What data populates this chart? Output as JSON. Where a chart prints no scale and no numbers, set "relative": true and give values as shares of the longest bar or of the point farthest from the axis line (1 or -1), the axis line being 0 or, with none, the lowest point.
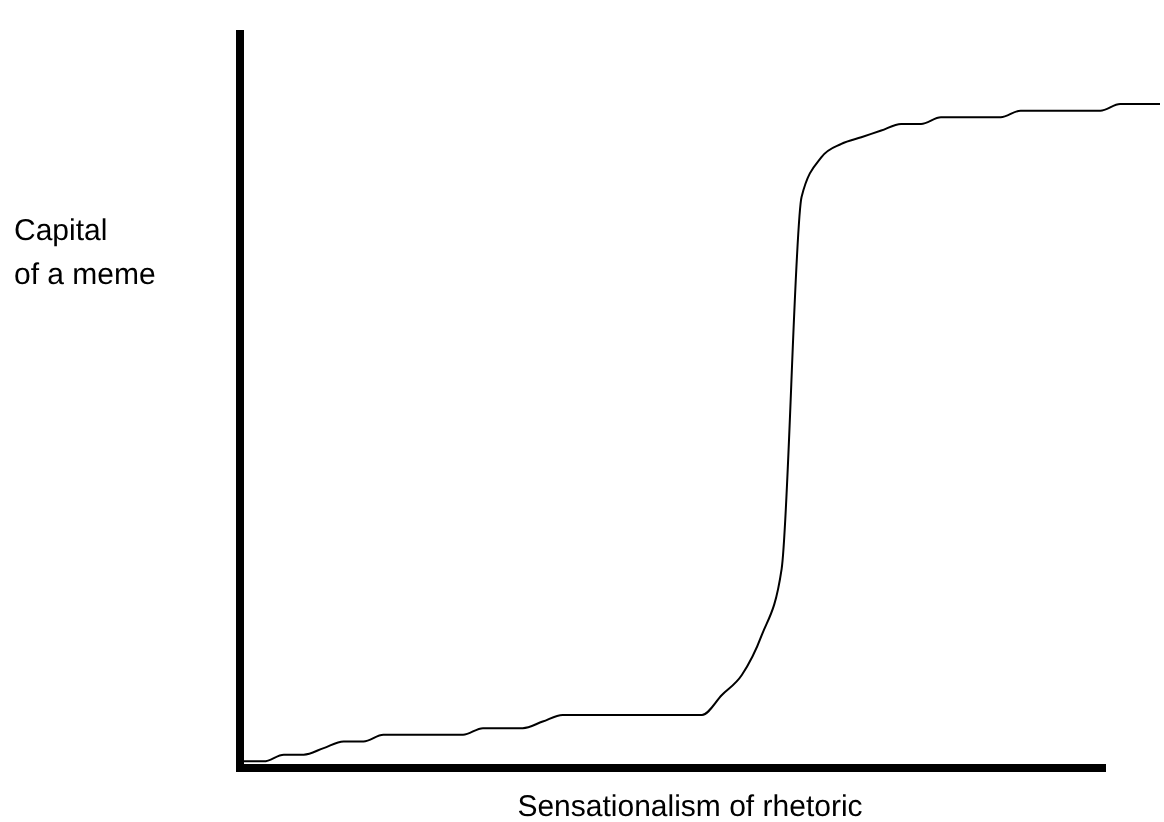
{
  "chart_data": {
    "type": "line",
    "relative": true,
    "xlabel": "Sensationalism of rhetoric",
    "ylabel": "Capital of a meme",
    "color": "#000000",
    "categories": [
      null,
      null,
      null,
      null,
      null,
      null,
      null,
      null,
      null,
      null,
      null,
      null,
      null,
      null,
      null,
      null,
      null,
      null,
      null,
      null,
      null,
      null,
      null,
      null,
      null,
      null,
      null,
      null,
      null,
      null,
      null,
      null,
      null,
      null,
      null,
      null,
      null,
      null,
      null,
      null,
      null,
      null,
      null,
      null,
      null,
      null,
      null
    ],
    "values": [
      0.01,
      0.01,
      0.02,
      0.02,
      0.03,
      0.04,
      0.04,
      0.05,
      0.05,
      0.05,
      0.05,
      0.05,
      0.06,
      0.06,
      0.06,
      0.07,
      0.08,
      0.08,
      0.08,
      0.08,
      0.08,
      0.08,
      0.08,
      0.08,
      0.11,
      0.14,
      0.2,
      0.3,
      0.86,
      0.92,
      0.94,
      0.95,
      0.96,
      0.97,
      0.97,
      0.98,
      0.98,
      0.98,
      0.98,
      0.99,
      0.99,
      0.99,
      0.99,
      0.99,
      1,
      1,
      1
    ]
  }
}
